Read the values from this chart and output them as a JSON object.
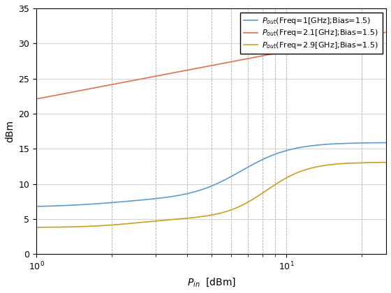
{
  "title": "",
  "xlabel": "P_in  [dBm]",
  "ylabel": "dBm",
  "xlim": [
    1,
    25
  ],
  "ylim": [
    0,
    35
  ],
  "yticks": [
    0,
    5,
    10,
    15,
    20,
    25,
    30,
    35
  ],
  "line1_label": "$P_{out}$(Freq=1[GHz];Bias=1.5)",
  "line2_label": "$P_{out}$(Freq=2.1[GHz];Bias=1.5)",
  "line3_label": "$P_{out}$(Freq=2.9[GHz];Bias=1.5)",
  "line1_color": "#5B9BD5",
  "line2_color": "#E07050",
  "line3_color": "#C9A020",
  "figsize": [
    5.6,
    4.2
  ],
  "dpi": 100
}
